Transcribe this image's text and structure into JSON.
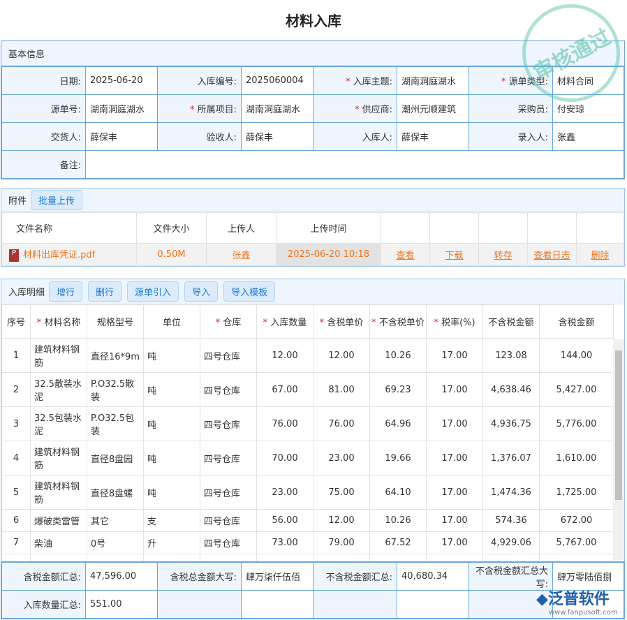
{
  "title": "材料入库",
  "stamp": "审核通过",
  "basic": {
    "header": "基本信息",
    "rows": [
      [
        {
          "label": "日期:",
          "value": "2025-06-20",
          "req": false
        },
        {
          "label": "入库编号:",
          "value": "2025060004",
          "req": false
        },
        {
          "label": "入库主题:",
          "value": "湖南洞庭湖水",
          "req": true
        },
        {
          "label": "源单类型:",
          "value": "材料合同",
          "req": true
        }
      ],
      [
        {
          "label": "源单号:",
          "value": "湖南洞庭湖水",
          "req": false
        },
        {
          "label": "所属项目:",
          "value": "湖南洞庭湖水",
          "req": true
        },
        {
          "label": "供应商:",
          "value": "潮州元顺建筑",
          "req": true
        },
        {
          "label": "采购员:",
          "value": "付安琼",
          "req": false
        }
      ],
      [
        {
          "label": "交货人:",
          "value": "薛保丰",
          "req": false
        },
        {
          "label": "验收人:",
          "value": "薛保丰",
          "req": false
        },
        {
          "label": "入库人:",
          "value": "薛保丰",
          "req": false
        },
        {
          "label": "录入人:",
          "value": "张鑫",
          "req": false
        }
      ]
    ],
    "remark_label": "备注:"
  },
  "attach": {
    "header": "附件",
    "upload": "批量上传",
    "columns": [
      "文件名称",
      "文件大小",
      "上传人",
      "上传时间"
    ],
    "file": {
      "name": "材料出库凭证.pdf",
      "size": "0.50M",
      "uploader": "张鑫",
      "time": "2025-06-20 10:18",
      "icon": "pdf-file-icon"
    },
    "actions": [
      "查看",
      "下载",
      "转存",
      "查看日志",
      "删除"
    ]
  },
  "detail": {
    "header": "入库明细",
    "buttons": [
      "增行",
      "删行",
      "源单引入",
      "导入",
      "导入模板"
    ],
    "columns": [
      {
        "t": "序号",
        "r": false
      },
      {
        "t": "材料名称",
        "r": true
      },
      {
        "t": "规格型号",
        "r": false
      },
      {
        "t": "单位",
        "r": false
      },
      {
        "t": "仓库",
        "r": true
      },
      {
        "t": "入库数量",
        "r": true
      },
      {
        "t": "含税单价",
        "r": true
      },
      {
        "t": "不含税单价",
        "r": true
      },
      {
        "t": "税率(%)",
        "r": true
      },
      {
        "t": "不含税金额",
        "r": false
      },
      {
        "t": "含税金额",
        "r": false
      }
    ],
    "rows": [
      [
        "1",
        "建筑材料钢筋",
        "直径16*9m",
        "吨",
        "四号仓库",
        "12.00",
        "12.00",
        "10.26",
        "17.00",
        "123.08",
        "144.00"
      ],
      [
        "2",
        "32.5散装水泥",
        "P.O32.5散装",
        "吨",
        "四号仓库",
        "67.00",
        "81.00",
        "69.23",
        "17.00",
        "4,638.46",
        "5,427.00"
      ],
      [
        "3",
        "32.5包装水泥",
        "P.O32.5包装",
        "吨",
        "四号仓库",
        "76.00",
        "76.00",
        "64.96",
        "17.00",
        "4,936.75",
        "5,776.00"
      ],
      [
        "4",
        "建筑材料钢筋",
        "直径8盘园",
        "吨",
        "四号仓库",
        "70.00",
        "23.00",
        "19.66",
        "17.00",
        "1,376.07",
        "1,610.00"
      ],
      [
        "5",
        "建筑材料钢筋",
        "直径8盘螺",
        "吨",
        "四号仓库",
        "23.00",
        "75.00",
        "64.10",
        "17.00",
        "1,474.36",
        "1,725.00"
      ],
      [
        "6",
        "爆破类雷管",
        "其它",
        "支",
        "四号仓库",
        "56.00",
        "12.00",
        "10.26",
        "17.00",
        "574.36",
        "672.00"
      ],
      [
        "7",
        "柴油",
        "0号",
        "升",
        "四号仓库",
        "73.00",
        "79.00",
        "67.52",
        "17.00",
        "4,929.06",
        "5,767.00"
      ]
    ]
  },
  "summary": {
    "r1": [
      {
        "label": "含税金额汇总:",
        "value": "47,596.00"
      },
      {
        "label": "含税总金额大写:",
        "value": "肆万柒仟伍佰"
      },
      {
        "label": "不含税金额汇总:",
        "value": "40,680.34"
      },
      {
        "label": "不含税金额汇总大写:",
        "value": "肆万零陆佰捌"
      }
    ],
    "r2": {
      "label": "入库数量汇总:",
      "value": "551.00"
    }
  },
  "logo": {
    "name": "泛普软件",
    "url": "www.fanpusoft.com"
  }
}
